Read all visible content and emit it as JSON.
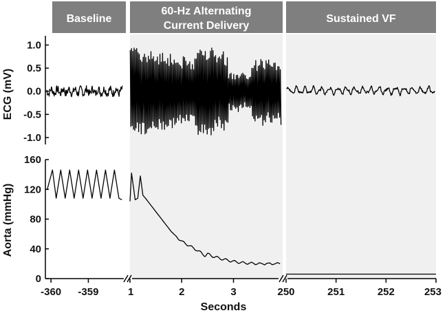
{
  "chart_data": [
    {
      "type": "line",
      "title": "ECG",
      "ylabel": "ECG (mV)",
      "ylim": [
        -1.15,
        1.2
      ],
      "yticks": [
        -1.0,
        -0.5,
        0.0,
        0.5,
        1.0
      ],
      "ytick_labels": [
        "-1.0",
        "-0.5",
        "0.0",
        "0.5",
        "1.0"
      ],
      "panels": [
        {
          "name": "Baseline",
          "xlim": [
            -360.15,
            -358.05
          ],
          "series": [
            {
              "name": "ECG",
              "description": "low amplitude noisy baseline",
              "amplitude_range": [
                -0.1,
                0.1
              ]
            }
          ]
        },
        {
          "name": "60-Hz Alternating Current Delivery",
          "xlim": [
            1.0,
            3.95
          ],
          "series": [
            {
              "name": "ECG",
              "description": "high amplitude oscillation during AC delivery",
              "amplitude_range": [
                -1.05,
                1.07
              ]
            }
          ]
        },
        {
          "name": "Sustained VF",
          "xlim": [
            250.0,
            253.0
          ],
          "series": [
            {
              "name": "ECG",
              "description": "low amplitude fibrillation",
              "amplitude_range": [
                -0.08,
                0.12
              ]
            }
          ]
        }
      ]
    },
    {
      "type": "line",
      "title": "Aorta",
      "ylabel": "Aorta (mmHg)",
      "ylim": [
        0,
        160
      ],
      "yticks": [
        0,
        40,
        80,
        120,
        160
      ],
      "ytick_labels": [
        "0",
        "40",
        "80",
        "120",
        "160"
      ],
      "panels": [
        {
          "name": "Baseline",
          "xlim": [
            -360.15,
            -358.05
          ],
          "series": [
            {
              "name": "Aorta",
              "description": "pulsatile pressure 9 beats",
              "x": [
                -360.1,
                -359.96,
                -359.86,
                -359.74,
                -359.62,
                -359.5,
                -359.38,
                -359.26,
                -359.14,
                -359.02,
                -358.9,
                -358.78,
                -358.66,
                -358.54,
                -358.42,
                -358.3,
                -358.18,
                -358.1
              ],
              "y": [
                120,
                146,
                108,
                146,
                108,
                146,
                108,
                146,
                108,
                146,
                108,
                146,
                108,
                146,
                108,
                146,
                108,
                106
              ]
            }
          ]
        },
        {
          "name": "60-Hz Alternating Current Delivery",
          "xlim": [
            1.0,
            3.95
          ],
          "series": [
            {
              "name": "Aorta",
              "description": "pressure decays after onset of AC",
              "x": [
                1.0,
                1.03,
                1.1,
                1.15,
                1.2,
                1.25,
                1.3,
                1.5,
                1.8,
                2.0,
                2.3,
                2.45,
                2.5,
                2.6,
                2.8,
                3.0,
                3.2,
                3.5,
                3.9
              ],
              "y": [
                104,
                142,
                106,
                108,
                138,
                112,
                108,
                90,
                63,
                50,
                38,
                31,
                33,
                30,
                26,
                23,
                21,
                20,
                20
              ]
            }
          ]
        },
        {
          "name": "Sustained VF",
          "xlim": [
            250.0,
            253.0
          ],
          "series": [
            {
              "name": "Aorta",
              "description": "flat pressure during VF",
              "x": [
                250.0,
                253.0
              ],
              "y": [
                6,
                6
              ]
            }
          ]
        }
      ]
    }
  ],
  "headers": [
    {
      "label_lines": [
        "Baseline"
      ],
      "fill": "#7f7f7f"
    },
    {
      "label_lines": [
        "60-Hz Alternating",
        "Current Delivery"
      ],
      "fill": "#7f7f7f"
    },
    {
      "label_lines": [
        "Sustained VF"
      ],
      "fill": "#7f7f7f"
    }
  ],
  "x_axis": {
    "label": "Seconds",
    "ticks": [
      {
        "value": -360,
        "label": "-360",
        "panel": 0
      },
      {
        "value": -359,
        "label": "-359",
        "panel": 0
      },
      {
        "value": 1,
        "label": "1",
        "panel": 1
      },
      {
        "value": 2,
        "label": "2",
        "panel": 1
      },
      {
        "value": 3,
        "label": "3",
        "panel": 1
      },
      {
        "value": 250,
        "label": "250",
        "panel": 2
      },
      {
        "value": 251,
        "label": "251",
        "panel": 2
      },
      {
        "value": 252,
        "label": "252",
        "panel": 2
      },
      {
        "value": 253,
        "label": "253",
        "panel": 2
      }
    ]
  },
  "colors": {
    "header_fill": "#7f7f7f",
    "shade": "#f0f0f0",
    "trace": "#000000"
  }
}
